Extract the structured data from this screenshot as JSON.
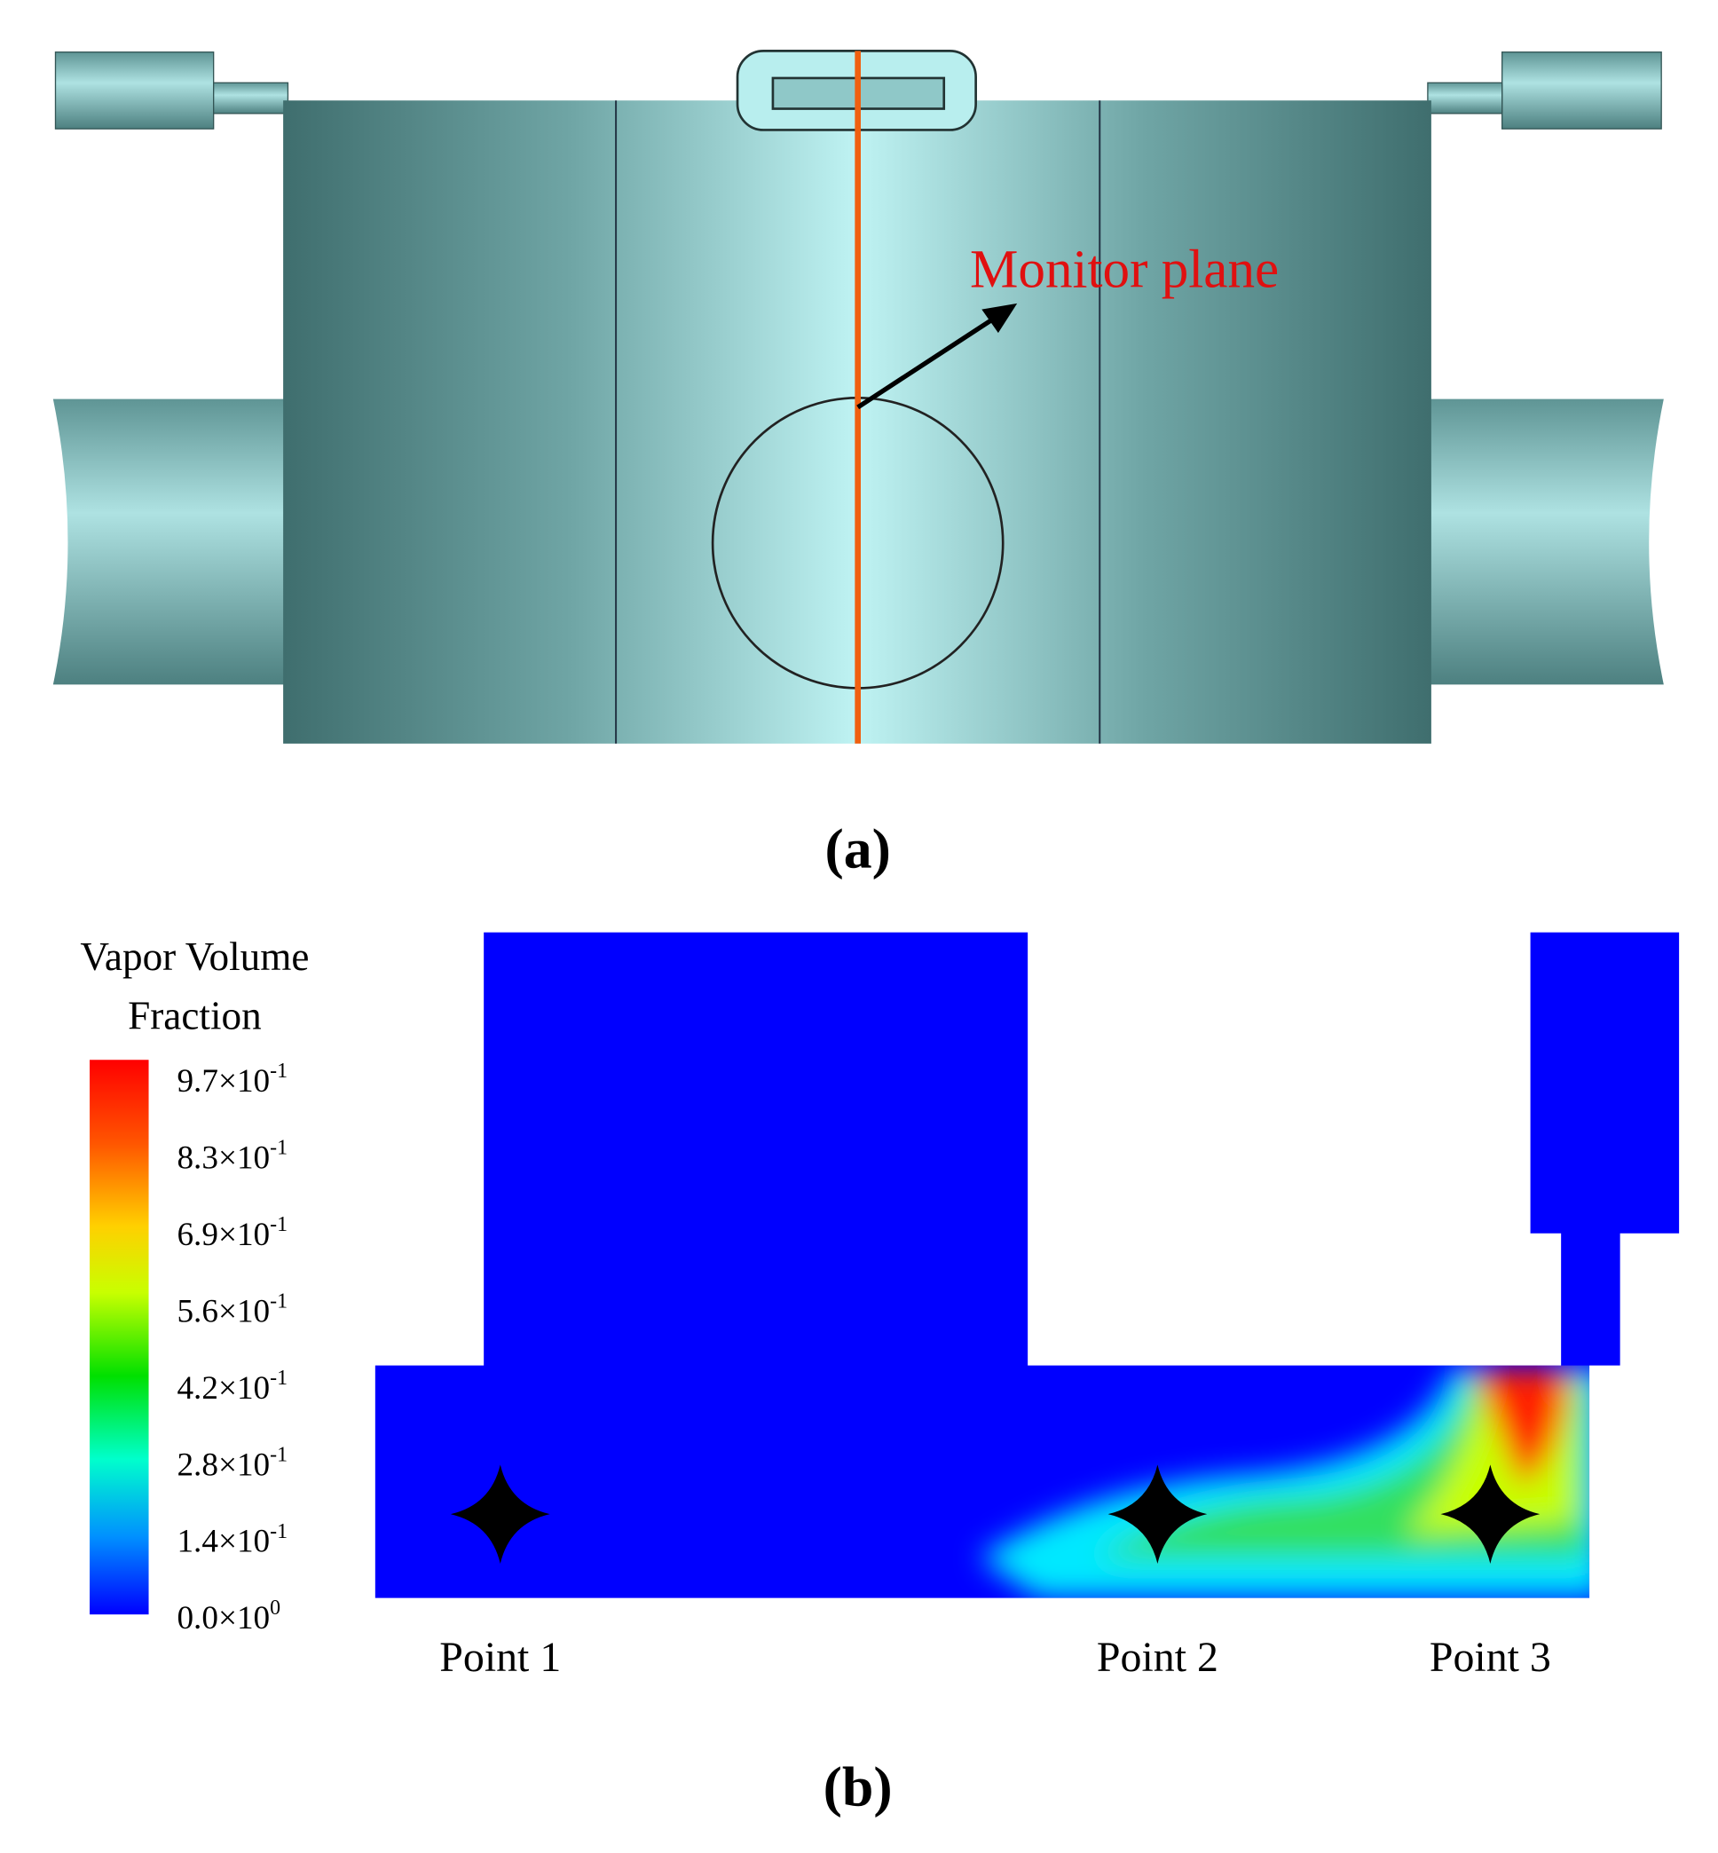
{
  "panel_a": {
    "annotation": "Monitor plane",
    "caption": "(a)"
  },
  "panel_b": {
    "colorbar": {
      "title": [
        "Vapor Volume",
        "Fraction"
      ],
      "labels": [
        {
          "base": "9.7×10",
          "exponent": "-1"
        },
        {
          "base": "8.3×10",
          "exponent": "-1"
        },
        {
          "base": "6.9×10",
          "exponent": "-1"
        },
        {
          "base": "5.6×10",
          "exponent": "-1"
        },
        {
          "base": "4.2×10",
          "exponent": "-1"
        },
        {
          "base": "2.8×10",
          "exponent": "-1"
        },
        {
          "base": "1.4×10",
          "exponent": "-1"
        },
        {
          "base": "0.0×10",
          "exponent": "0"
        }
      ]
    },
    "points": [
      "Point 1",
      "Point 2",
      "Point 3"
    ],
    "caption": "(b)"
  }
}
